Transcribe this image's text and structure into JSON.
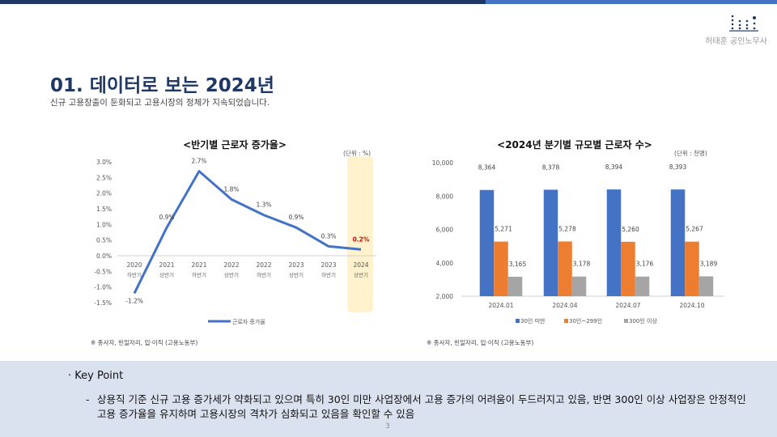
{
  "header": {
    "brand": "허태훈 공인노무사",
    "brand_color": "#1f3864",
    "accent": "#4472c4"
  },
  "page": {
    "title": "01. 데이터로 보는 2024년",
    "subtitle": "신규 고용창출이 둔화되고 고용시장의 정체가 지속되었습니다.",
    "page_number": "3"
  },
  "chart_data": [
    {
      "type": "line",
      "title": "<반기별 근로자 증가율>",
      "unit": "(단위 : %)",
      "categories": [
        [
          "2020",
          "하반기"
        ],
        [
          "2021",
          "상반기"
        ],
        [
          "2021",
          "하반기"
        ],
        [
          "2022",
          "상반기"
        ],
        [
          "2022",
          "하반기"
        ],
        [
          "2023",
          "상반기"
        ],
        [
          "2023",
          "하반기"
        ],
        [
          "2024",
          "상반기"
        ]
      ],
      "series": [
        {
          "name": "근로자 증가율",
          "values": [
            -1.2,
            0.9,
            2.7,
            1.8,
            1.3,
            0.9,
            0.3,
            0.2
          ],
          "labels": [
            "-1.2%",
            "0.9%",
            "2.7%",
            "1.8%",
            "1.3%",
            "0.9%",
            "0.3%",
            "0.2%"
          ],
          "color": "#4472c4"
        }
      ],
      "yticks": [
        "3.0%",
        "2.5%",
        "2.0%",
        "1.5%",
        "1.0%",
        "0.5%",
        "0.0%",
        "-0.5%",
        "-1.0%",
        "-1.5%"
      ],
      "ylim": [
        -1.5,
        3.0
      ],
      "highlight_category": "2024 상반기",
      "highlight_color": "#fff2cc",
      "highlight_label_color": "#e00000",
      "legend": "bottom",
      "note": "※ 종사자, 빈일자리, 입·이직 (고용노동부)"
    },
    {
      "type": "bar",
      "title": "<2024년 분기별 규모별 근로자 수>",
      "unit": "(단위 : 천명)",
      "categories": [
        "2024.01",
        "2024.04",
        "2024.07",
        "2024.10"
      ],
      "series": [
        {
          "name": "30인 미만",
          "values": [
            8364,
            8378,
            8394,
            8393
          ],
          "labels": [
            "8,364",
            "8,378",
            "8,394",
            "8,393"
          ],
          "color": "#4472c4"
        },
        {
          "name": "30인~299인",
          "values": [
            5271,
            5278,
            5260,
            5267
          ],
          "labels": [
            "5,271",
            "5,278",
            "5,260",
            "5,267"
          ],
          "color": "#ed7d31"
        },
        {
          "name": "300인 이상",
          "values": [
            3165,
            3178,
            3176,
            3189
          ],
          "labels": [
            "3,165",
            "3,178",
            "3,176",
            "3,189"
          ],
          "color": "#a5a5a5"
        }
      ],
      "yticks": [
        "10,000",
        "8,000",
        "6,000",
        "4,000",
        "2,000"
      ],
      "ylim": [
        2000,
        10000
      ],
      "legend": "bottom",
      "note": "※ 종사자, 빈일자리, 입·이직 (고용노동부)"
    }
  ],
  "keypoint": {
    "heading": "Key Point",
    "bullet": "·",
    "dash": "-",
    "text": "상용직 기준 신규 고용 증가세가 약화되고 있으며 특히 30인 미만 사업장에서 고용 증가의 어려움이 두드러지고 있음, 반면 300인 이상 사업장은 안정적인 고용 증가율을 유지하며 고용시장의 격차가 심화되고 있음을 확인할 수 있음"
  }
}
